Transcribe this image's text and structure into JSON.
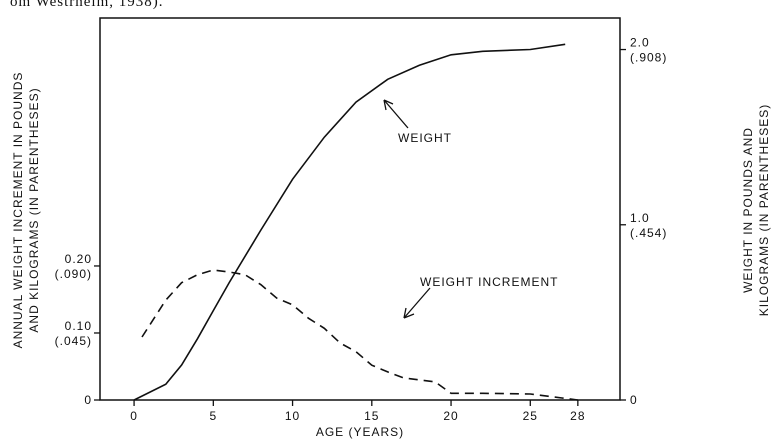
{
  "caption": "om Westrheim, 1938).",
  "chart_data": {
    "type": "line",
    "xlabel": "AGE (YEARS)",
    "ylabel": [
      "ANNUAL WEIGHT INCREMENT IN POUNDS",
      "AND KILOGRAMS (IN PARENTHESES)"
    ],
    "y2label": [
      "WEIGHT IN POUNDS AND",
      "KILOGRAMS (IN PARENTHESES)"
    ],
    "xlim": [
      -2.15,
      30.66
    ],
    "xticks": [
      0,
      5,
      10,
      15,
      20,
      25,
      28
    ],
    "ylim": [
      0,
      0.57
    ],
    "yticks": [
      0,
      {
        "value": 0.1,
        "label": "0.10\n(.045)"
      },
      {
        "value": 0.2,
        "label": "0.20\n(.090)"
      }
    ],
    "y2lim": [
      0,
      2.18
    ],
    "y2ticks": [
      0,
      {
        "value": 1.0,
        "label": "1.0\n(.454)"
      },
      {
        "value": 2.0,
        "label": "2.0\n(.908)"
      }
    ],
    "series": [
      {
        "name": "WEIGHT",
        "axis": "y2",
        "color": "#111",
        "dash": false,
        "x": [
          0,
          2,
          3,
          4,
          5,
          6,
          8,
          10,
          12,
          14,
          16,
          18,
          20,
          22,
          25,
          27.2
        ],
        "values": [
          0,
          0.09,
          0.2,
          0.35,
          0.51,
          0.67,
          0.97,
          1.26,
          1.5,
          1.7,
          1.83,
          1.91,
          1.97,
          1.99,
          2.0,
          2.03
        ]
      },
      {
        "name": "WEIGHT INCREMENT",
        "axis": "y",
        "color": "#111",
        "dash": true,
        "x": [
          0.5,
          2,
          3,
          4,
          5,
          6,
          7,
          8,
          9,
          10,
          11,
          12,
          13,
          14,
          15,
          16,
          17,
          19,
          20,
          22,
          25,
          27,
          28
        ],
        "values": [
          0.094,
          0.149,
          0.175,
          0.187,
          0.194,
          0.191,
          0.187,
          0.172,
          0.152,
          0.142,
          0.122,
          0.107,
          0.085,
          0.072,
          0.052,
          0.042,
          0.033,
          0.027,
          0.01,
          0.01,
          0.009,
          0.003,
          0
        ]
      }
    ]
  }
}
